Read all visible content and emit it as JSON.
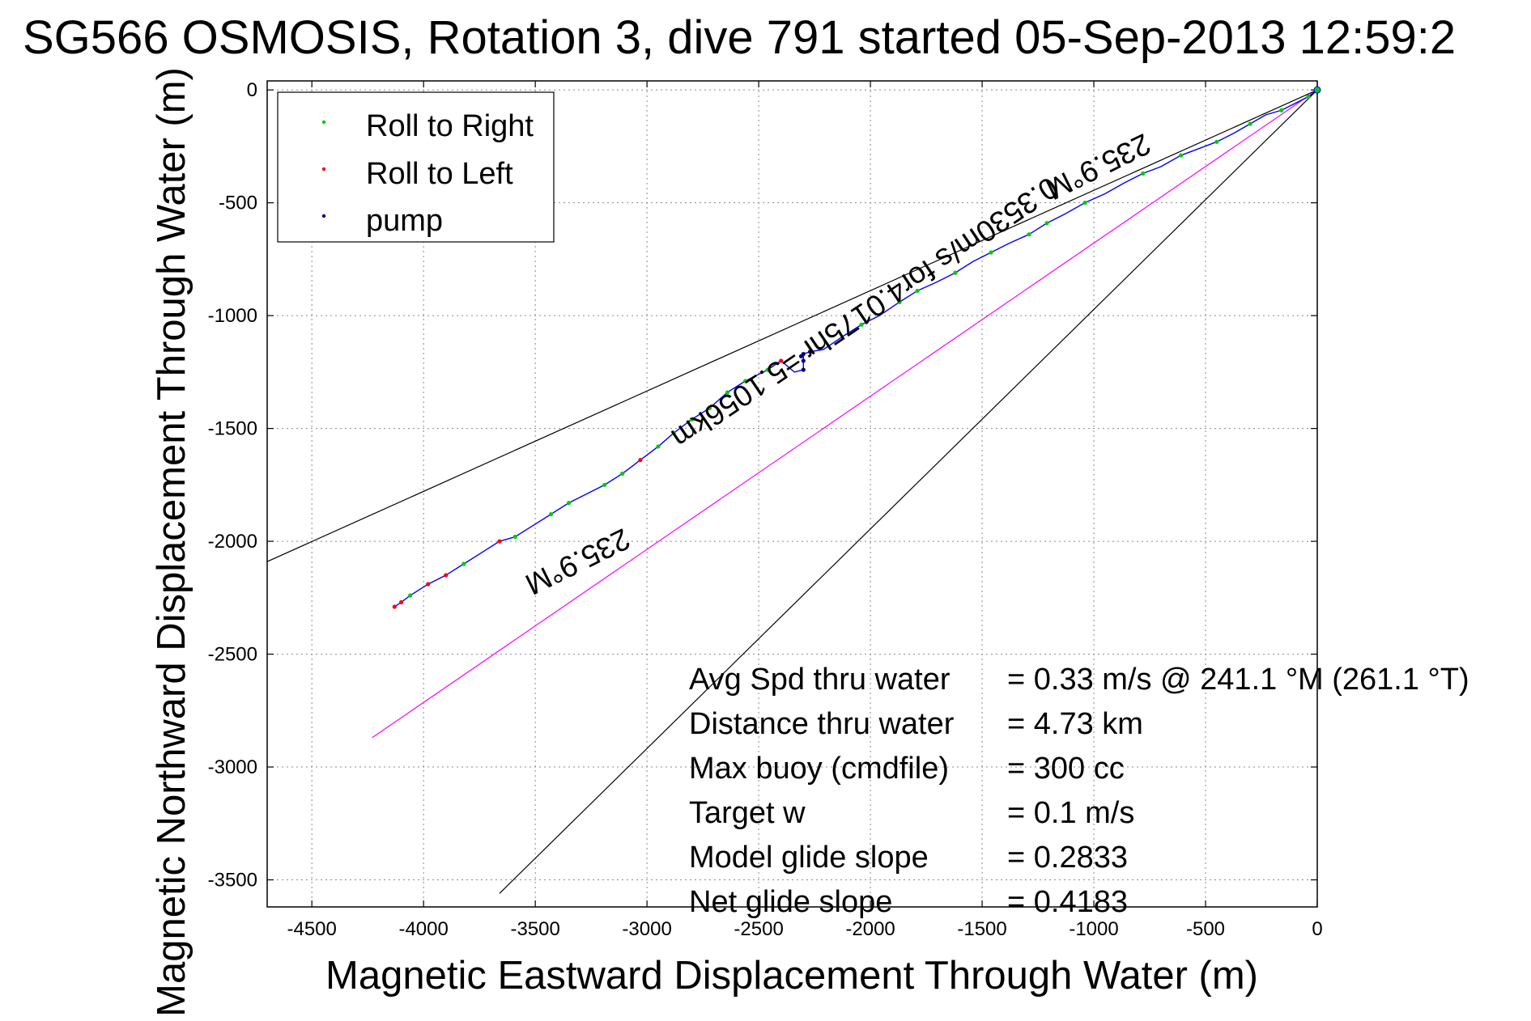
{
  "chart_data": {
    "type": "line",
    "title": "SG566 OSMOSIS, Rotation 3, dive 791 started 05-Sep-2013 12:59:2",
    "xlabel": "Magnetic Eastward Displacement Through Water (m)",
    "ylabel": "Magnetic Northward Displacement Through Water (m)",
    "xlim": [
      -4700,
      0
    ],
    "ylim": [
      -3620,
      40
    ],
    "xticks": [
      -4500,
      -4000,
      -3500,
      -3000,
      -2500,
      -2000,
      -1500,
      -1000,
      -500,
      0
    ],
    "yticks": [
      0,
      -500,
      -1000,
      -1500,
      -2000,
      -2500,
      -3000,
      -3500
    ],
    "grid": true,
    "legend_position": "top-left",
    "legend": [
      {
        "label": "Roll to Right",
        "color": "#00cc00"
      },
      {
        "label": "Roll to Left",
        "color": "#ff0000"
      },
      {
        "label": "pump",
        "color": "#000080"
      }
    ],
    "track": {
      "color": "#0000ff",
      "points": [
        [
          0,
          0
        ],
        [
          -40,
          -30
        ],
        [
          -100,
          -60
        ],
        [
          -160,
          -90
        ],
        [
          -230,
          -110
        ],
        [
          -300,
          -150
        ],
        [
          -370,
          -190
        ],
        [
          -450,
          -230
        ],
        [
          -530,
          -260
        ],
        [
          -610,
          -290
        ],
        [
          -700,
          -340
        ],
        [
          -780,
          -370
        ],
        [
          -860,
          -410
        ],
        [
          -950,
          -460
        ],
        [
          -1040,
          -500
        ],
        [
          -1130,
          -550
        ],
        [
          -1210,
          -590
        ],
        [
          -1290,
          -640
        ],
        [
          -1380,
          -680
        ],
        [
          -1460,
          -720
        ],
        [
          -1540,
          -760
        ],
        [
          -1620,
          -810
        ],
        [
          -1700,
          -850
        ],
        [
          -1790,
          -890
        ],
        [
          -1870,
          -940
        ],
        [
          -1960,
          -1000
        ],
        [
          -2040,
          -1040
        ],
        [
          -2120,
          -1090
        ],
        [
          -2210,
          -1150
        ],
        [
          -2270,
          -1160
        ],
        [
          -2300,
          -1170
        ],
        [
          -2300,
          -1240
        ],
        [
          -2340,
          -1250
        ],
        [
          -2400,
          -1200
        ],
        [
          -2460,
          -1240
        ],
        [
          -2560,
          -1290
        ],
        [
          -2640,
          -1340
        ],
        [
          -2720,
          -1410
        ],
        [
          -2800,
          -1460
        ],
        [
          -2880,
          -1520
        ],
        [
          -2950,
          -1580
        ],
        [
          -3030,
          -1640
        ],
        [
          -3110,
          -1700
        ],
        [
          -3190,
          -1750
        ],
        [
          -3270,
          -1790
        ],
        [
          -3350,
          -1830
        ],
        [
          -3430,
          -1880
        ],
        [
          -3510,
          -1930
        ],
        [
          -3590,
          -1980
        ],
        [
          -3660,
          -2000
        ],
        [
          -3740,
          -2050
        ],
        [
          -3820,
          -2100
        ],
        [
          -3900,
          -2150
        ],
        [
          -3980,
          -2190
        ],
        [
          -4060,
          -2240
        ],
        [
          -4100,
          -2270
        ],
        [
          -4130,
          -2290
        ]
      ]
    },
    "roll_right_points": [
      [
        -40,
        -30
      ],
      [
        -160,
        -90
      ],
      [
        -300,
        -150
      ],
      [
        -450,
        -230
      ],
      [
        -610,
        -290
      ],
      [
        -780,
        -370
      ],
      [
        -1040,
        -500
      ],
      [
        -1210,
        -590
      ],
      [
        -1290,
        -640
      ],
      [
        -1460,
        -720
      ],
      [
        -1620,
        -810
      ],
      [
        -1790,
        -890
      ],
      [
        -1870,
        -940
      ],
      [
        -2040,
        -1040
      ],
      [
        -2460,
        -1240
      ],
      [
        -2560,
        -1290
      ],
      [
        -2640,
        -1340
      ],
      [
        -2720,
        -1410
      ],
      [
        -2800,
        -1460
      ],
      [
        -2880,
        -1520
      ],
      [
        -2950,
        -1580
      ],
      [
        -3110,
        -1700
      ],
      [
        -3190,
        -1750
      ],
      [
        -3350,
        -1830
      ],
      [
        -3430,
        -1880
      ],
      [
        -3590,
        -1980
      ],
      [
        -3820,
        -2100
      ],
      [
        -4060,
        -2240
      ]
    ],
    "roll_left_points": [
      [
        -2400,
        -1200
      ],
      [
        -3030,
        -1640
      ],
      [
        -3660,
        -2000
      ],
      [
        -3900,
        -2150
      ],
      [
        -3980,
        -2190
      ],
      [
        -4100,
        -2270
      ],
      [
        -4130,
        -2290
      ]
    ],
    "pump_points": [
      [
        -2270,
        -1160
      ],
      [
        -2300,
        -1170
      ],
      [
        -2300,
        -1200
      ],
      [
        -2300,
        -1240
      ],
      [
        -2310,
        -1180
      ]
    ],
    "reference_lines": [
      {
        "name": "heading 235.9 M line upper",
        "color": "#000000",
        "points": [
          [
            0,
            0
          ],
          [
            -4700,
            -2090
          ]
        ]
      },
      {
        "name": "heading 235.9 M line lower",
        "color": "#000000",
        "points": [
          [
            0,
            0
          ],
          [
            -3660,
            -3560
          ]
        ]
      },
      {
        "name": "0.3530 m/s for 4.0175 hr",
        "color": "#ff00ff",
        "points": [
          [
            0,
            0
          ],
          [
            -4230,
            -2870
          ]
        ]
      }
    ],
    "annotations": [
      {
        "text": "235.9°M",
        "x": -1000,
        "y": -300,
        "rotation_deg": 153.7
      },
      {
        "text": "0.3530m/s for4.0175hr =5.1056km",
        "x": -2050,
        "y": -950,
        "rotation_deg": 145.9
      },
      {
        "text": "235.9°M",
        "x": -3330,
        "y": -2050,
        "rotation_deg": 153.7
      }
    ],
    "stats": [
      {
        "label": "Avg Spd thru water",
        "value": "=  0.33 m/s @ 241.1 °M (261.1 °T)"
      },
      {
        "label": "Distance thru water",
        "value": "=  4.73 km"
      },
      {
        "label": "Max buoy (cmdfile)",
        "value": "= 300 cc"
      },
      {
        "label": "Target w",
        "value": "= 0.1 m/s"
      },
      {
        "label": "Model glide slope",
        "value": "= 0.2833"
      },
      {
        "label": "Net glide slope",
        "value": "= 0.4183"
      }
    ]
  }
}
